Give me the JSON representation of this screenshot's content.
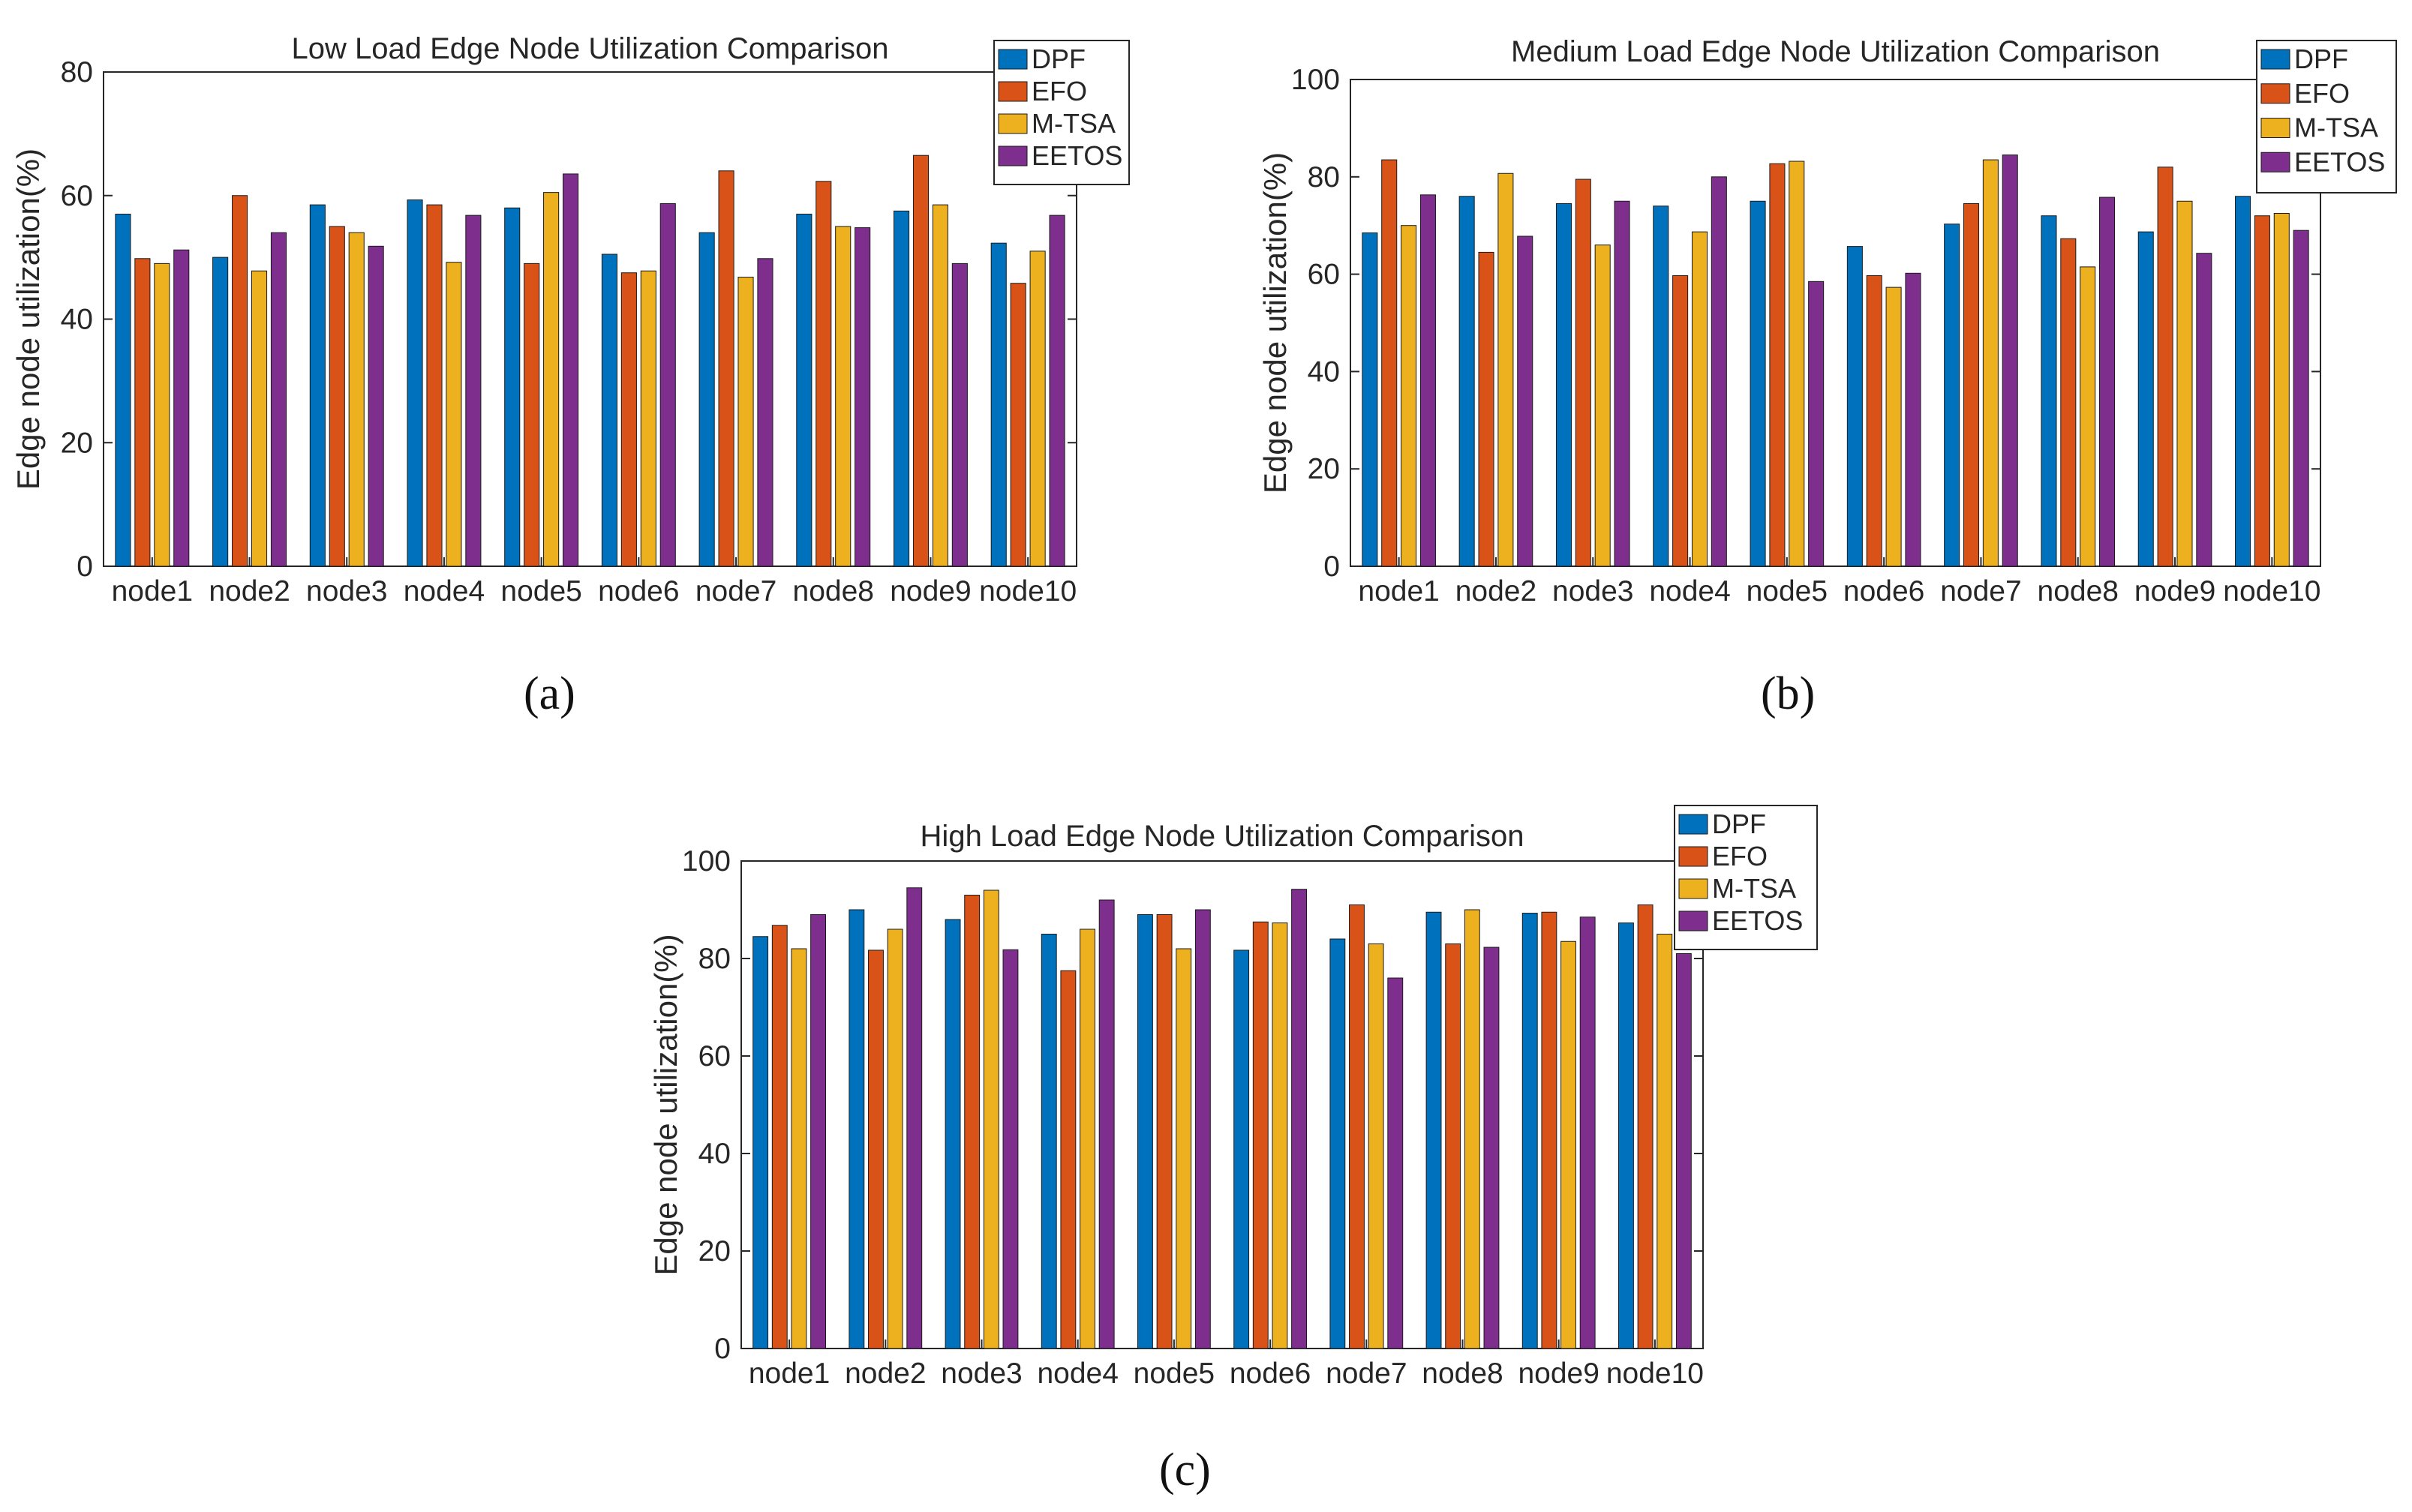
{
  "colors": {
    "DPF": "#0072BD",
    "EFO": "#D95319",
    "M-TSA": "#EDB120",
    "EETOS": "#7E2F8E"
  },
  "captions": [
    "(a)",
    "(b)",
    "(c)"
  ],
  "chart_data": [
    {
      "type": "bar",
      "title": "Low Load Edge Node Utilization Comparison",
      "xlabel": "",
      "ylabel": "Edge node utilization(%)",
      "ylim": [
        0,
        80
      ],
      "yticks": [
        0,
        20,
        40,
        60,
        80
      ],
      "legend_position": "top-right",
      "categories": [
        "node1",
        "node2",
        "node3",
        "node4",
        "node5",
        "node6",
        "node7",
        "node8",
        "node9",
        "node10"
      ],
      "series": [
        {
          "name": "DPF",
          "values": [
            57,
            50,
            58.5,
            59.3,
            58,
            50.5,
            54,
            57,
            57.5,
            52.3
          ]
        },
        {
          "name": "EFO",
          "values": [
            49.8,
            60,
            55,
            58.5,
            49,
            47.5,
            64,
            62.3,
            66.5,
            45.8
          ]
        },
        {
          "name": "M-TSA",
          "values": [
            49,
            47.8,
            54,
            49.2,
            60.5,
            47.8,
            46.8,
            55,
            58.5,
            51
          ]
        },
        {
          "name": "EETOS",
          "values": [
            51.2,
            54,
            51.8,
            56.8,
            63.5,
            58.7,
            49.8,
            54.8,
            49,
            56.8
          ]
        }
      ]
    },
    {
      "type": "bar",
      "title": "Medium Load Edge Node Utilization Comparison",
      "xlabel": "",
      "ylabel": "Edge node utilization(%)",
      "ylim": [
        0,
        100
      ],
      "yticks": [
        0,
        20,
        40,
        60,
        80,
        100
      ],
      "legend_position": "top-right",
      "categories": [
        "node1",
        "node2",
        "node3",
        "node4",
        "node5",
        "node6",
        "node7",
        "node8",
        "node9",
        "node10"
      ],
      "series": [
        {
          "name": "DPF",
          "values": [
            68.5,
            76,
            74.5,
            74,
            75,
            65.7,
            70.3,
            72,
            68.7,
            76
          ]
        },
        {
          "name": "EFO",
          "values": [
            83.5,
            64.5,
            79.5,
            59.7,
            82.7,
            59.7,
            74.5,
            67.3,
            82,
            72
          ]
        },
        {
          "name": "M-TSA",
          "values": [
            70,
            80.7,
            66,
            68.7,
            83.2,
            57.3,
            83.5,
            61.5,
            75,
            72.5
          ]
        },
        {
          "name": "EETOS",
          "values": [
            76.3,
            67.8,
            75,
            80,
            58.5,
            60.2,
            84.5,
            75.8,
            64.3,
            69
          ]
        }
      ]
    },
    {
      "type": "bar",
      "title": "High Load Edge Node Utilization Comparison",
      "xlabel": "",
      "ylabel": "Edge node utilization(%)",
      "ylim": [
        0,
        100
      ],
      "yticks": [
        0,
        20,
        40,
        60,
        80,
        100
      ],
      "legend_position": "top-right",
      "categories": [
        "node1",
        "node2",
        "node3",
        "node4",
        "node5",
        "node6",
        "node7",
        "node8",
        "node9",
        "node10"
      ],
      "series": [
        {
          "name": "DPF",
          "values": [
            84.5,
            90,
            88,
            85,
            89,
            81.7,
            84,
            89.5,
            89.3,
            87.3
          ]
        },
        {
          "name": "EFO",
          "values": [
            86.8,
            81.7,
            93,
            77.5,
            89,
            87.5,
            91,
            83,
            89.5,
            91
          ]
        },
        {
          "name": "M-TSA",
          "values": [
            82,
            86,
            94,
            86,
            82,
            87.3,
            83,
            90,
            83.5,
            85
          ]
        },
        {
          "name": "EETOS",
          "values": [
            89,
            94.5,
            81.8,
            92,
            90,
            94.2,
            76,
            82.3,
            88.5,
            81
          ]
        }
      ]
    }
  ]
}
